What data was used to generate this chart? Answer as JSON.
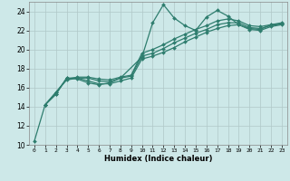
{
  "xlabel": "Humidex (Indice chaleur)",
  "background_color": "#cde8e8",
  "grid_color": "#b0c8c8",
  "line_color": "#2e7d6e",
  "xlim": [
    -0.5,
    23.5
  ],
  "ylim": [
    10,
    25
  ],
  "xticks": [
    0,
    1,
    2,
    3,
    4,
    5,
    6,
    7,
    8,
    9,
    10,
    11,
    12,
    13,
    14,
    15,
    16,
    17,
    18,
    19,
    20,
    21,
    22,
    23
  ],
  "yticks": [
    10,
    12,
    14,
    16,
    18,
    20,
    22,
    24
  ],
  "series": [
    {
      "x": [
        0,
        1,
        2,
        3,
        4,
        5,
        6,
        7,
        8,
        10,
        11,
        12,
        13,
        14,
        15,
        16,
        17,
        18,
        19,
        20,
        21,
        22,
        23
      ],
      "y": [
        10.4,
        14.2,
        15.3,
        17.0,
        16.9,
        16.5,
        16.3,
        16.5,
        17.0,
        19.2,
        22.8,
        24.7,
        23.3,
        22.5,
        22.0,
        23.4,
        24.1,
        23.5,
        22.6,
        22.2,
        22.1,
        22.6,
        22.7
      ]
    },
    {
      "x": [
        1,
        2,
        3,
        4,
        5,
        6,
        7,
        8,
        9,
        10,
        11,
        12,
        13,
        14,
        15,
        16,
        17,
        18,
        19,
        20,
        21,
        22,
        23
      ],
      "y": [
        14.2,
        15.3,
        17.0,
        17.0,
        16.7,
        16.4,
        16.4,
        16.7,
        17.0,
        19.0,
        19.3,
        19.7,
        20.2,
        20.8,
        21.3,
        21.8,
        22.2,
        22.5,
        22.6,
        22.1,
        22.0,
        22.4,
        22.6
      ]
    },
    {
      "x": [
        1,
        2,
        3,
        4,
        5,
        6,
        7,
        8,
        9,
        10,
        11,
        12,
        13,
        14,
        15,
        16,
        17,
        18,
        19,
        20,
        21,
        22,
        23
      ],
      "y": [
        14.2,
        15.5,
        16.8,
        17.0,
        17.0,
        16.7,
        16.6,
        17.0,
        17.2,
        19.3,
        19.6,
        20.1,
        20.7,
        21.2,
        21.7,
        22.1,
        22.6,
        22.8,
        22.8,
        22.3,
        22.2,
        22.5,
        22.7
      ]
    },
    {
      "x": [
        1,
        2,
        3,
        4,
        5,
        6,
        7,
        8,
        9,
        10,
        11,
        12,
        13,
        14,
        15,
        16,
        17,
        18,
        19,
        20,
        21,
        22,
        23
      ],
      "y": [
        14.2,
        15.5,
        16.9,
        17.1,
        17.1,
        16.9,
        16.8,
        17.1,
        17.3,
        19.6,
        20.0,
        20.5,
        21.1,
        21.6,
        22.1,
        22.5,
        23.0,
        23.2,
        23.0,
        22.5,
        22.4,
        22.6,
        22.8
      ]
    }
  ]
}
